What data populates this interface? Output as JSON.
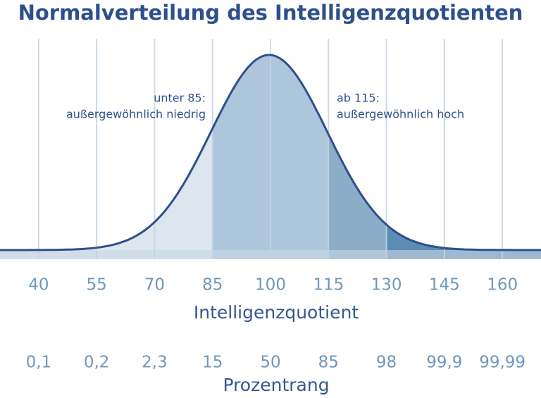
{
  "chart_data": {
    "type": "density",
    "title": "Normalverteilung des Intelligenzquotienten",
    "xlabel": "Intelligenzquotient",
    "xlim": [
      30,
      170
    ],
    "xticks": [
      40,
      55,
      70,
      85,
      100,
      115,
      130,
      145,
      160
    ],
    "percentile_title": "Prozentrang",
    "percentiles": [
      "0,1",
      "0,2",
      "2,3",
      "15",
      "50",
      "85",
      "98",
      "99,9",
      "99,99"
    ],
    "annotations": [
      {
        "lines": [
          "unter 85:",
          "außergewöhnlich niedrig"
        ]
      },
      {
        "lines": [
          "ab 115:",
          "außergewöhnlich hoch"
        ]
      }
    ]
  }
}
